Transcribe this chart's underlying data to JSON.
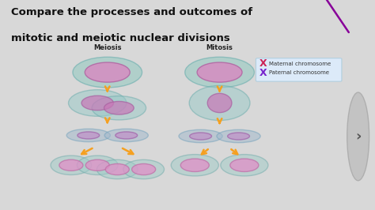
{
  "title_line1": "Compare the processes and outcomes of",
  "title_line2": "mitotic and meiotic nuclear divisions",
  "title_color": "#111111",
  "title_fontsize": 9.5,
  "bg_color_top": "#d8d8d8",
  "diagram_bg": "#b8d4e0",
  "label_meiosis": "Meiosis",
  "label_mitosis": "Mitosis",
  "legend_maternal": "Maternal chromosome",
  "legend_paternal": "Paternal chromosome",
  "legend_maternal_color": "#cc2255",
  "legend_paternal_color": "#7722cc",
  "arrow_color": "#f5a020",
  "outer_cell_color": "#a0cccc",
  "outer_cell_edge": "#70aaaa",
  "inner_nucleus_color": "#e090c0",
  "inner_nucleus_edge": "#c060a0",
  "dividing_outer": "#a0b8cc",
  "dividing_inner": "#c090c8",
  "nav_bg": "#bbbbbb",
  "purple_line_color": "#880099"
}
